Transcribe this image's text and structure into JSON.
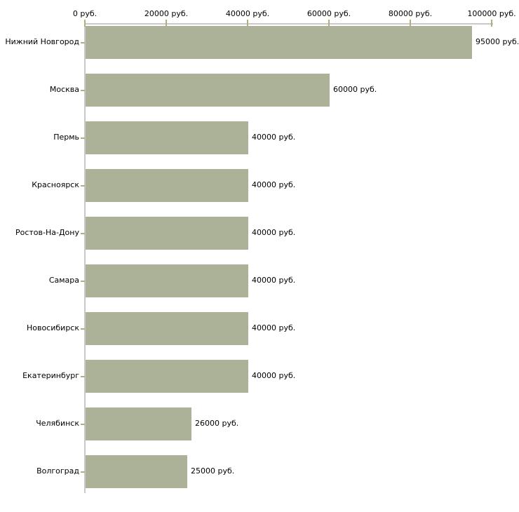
{
  "chart_data": {
    "type": "bar",
    "orientation": "horizontal",
    "title": "",
    "xlabel": "",
    "ylabel": "",
    "unit": "руб.",
    "xlim": [
      0,
      100000
    ],
    "grid": false,
    "legend": false,
    "x_tick_values": [
      0,
      20000,
      40000,
      60000,
      80000,
      100000
    ],
    "x_tick_labels": [
      "0 руб.",
      "20000 руб.",
      "40000 руб.",
      "60000 руб.",
      "80000 руб.",
      "100000 руб."
    ],
    "categories": [
      "Нижний Новгород",
      "Москва",
      "Пермь",
      "Красноярск",
      "Ростов-На-Дону",
      "Самара",
      "Новосибирск",
      "Екатеринбург",
      "Челябинск",
      "Волгоград"
    ],
    "values": [
      95000,
      60000,
      40000,
      40000,
      40000,
      40000,
      40000,
      40000,
      26000,
      25000
    ],
    "value_labels": [
      "95000 руб.",
      "60000 руб.",
      "40000 руб.",
      "40000 руб.",
      "40000 руб.",
      "40000 руб.",
      "40000 руб.",
      "40000 руб.",
      "26000 руб.",
      "25000 руб."
    ],
    "bar_color": "#acb298",
    "tick_color": "#b1ae7e",
    "axis_color": "#c9c9c9",
    "text_color": "#000000",
    "background_color": "#ffffff"
  }
}
